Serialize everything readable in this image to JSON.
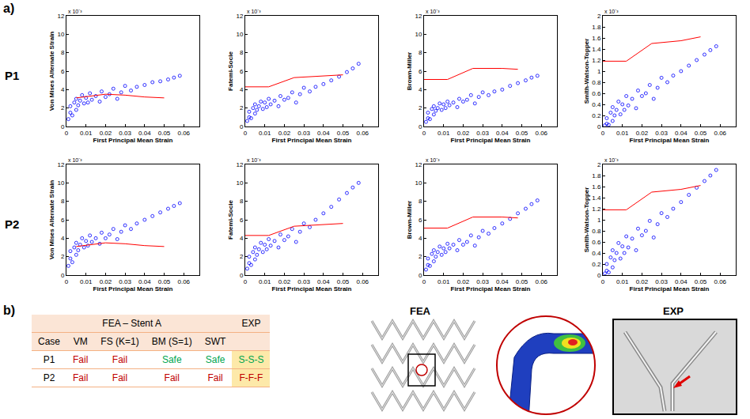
{
  "chart_data": [
    {
      "type": "scatter",
      "y_label": "Von Mises Alternate Strain",
      "x_label": "First Principal Mean Strain",
      "y_multiplier": "x 10⁻³",
      "xlim": [
        0,
        0.068
      ],
      "xticks": [
        0,
        0.01,
        0.02,
        0.03,
        0.04,
        0.05,
        0.06
      ],
      "ylim": [
        0,
        12
      ],
      "yticks": [
        0,
        2,
        4,
        6,
        8,
        10,
        12
      ],
      "grid": false,
      "series": [
        {
          "type": "scatter",
          "marker": "circle-open",
          "color": "#0000ff",
          "x": [
            0.001,
            0.002,
            0.002,
            0.003,
            0.004,
            0.005,
            0.005,
            0.006,
            0.007,
            0.008,
            0.009,
            0.01,
            0.011,
            0.012,
            0.013,
            0.015,
            0.017,
            0.018,
            0.02,
            0.022,
            0.024,
            0.026,
            0.028,
            0.03,
            0.033,
            0.036,
            0.04,
            0.044,
            0.048,
            0.052,
            0.055,
            0.058
          ],
          "values": [
            0.8,
            1.5,
            2.2,
            1.2,
            2.6,
            1.8,
            3.0,
            2.3,
            2.8,
            3.4,
            2.5,
            3.1,
            2.6,
            3.6,
            2.9,
            3.3,
            2.7,
            3.8,
            3.2,
            3.5,
            4.1,
            3.0,
            3.7,
            4.4,
            3.9,
            4.3,
            4.5,
            4.8,
            4.9,
            5.1,
            5.3,
            5.5
          ]
        },
        {
          "type": "line",
          "line_style": "solid",
          "color": "#ff0000",
          "x": [
            0.005,
            0.012,
            0.02,
            0.03,
            0.04,
            0.05
          ],
          "values": [
            3.1,
            3.3,
            3.5,
            3.4,
            3.2,
            3.1
          ]
        }
      ]
    },
    {
      "type": "scatter",
      "y_label": "Fatemi-Socie",
      "x_label": "First Principal Mean Strain",
      "y_multiplier": "x 10⁻³",
      "xlim": [
        0,
        0.068
      ],
      "xticks": [
        0,
        0.01,
        0.02,
        0.03,
        0.04,
        0.05,
        0.06
      ],
      "ylim": [
        0,
        12
      ],
      "yticks": [
        0,
        2,
        4,
        6,
        8,
        10,
        12
      ],
      "grid": false,
      "series": [
        {
          "type": "scatter",
          "marker": "circle-open",
          "color": "#0000ff",
          "x": [
            0.001,
            0.002,
            0.002,
            0.003,
            0.004,
            0.005,
            0.005,
            0.006,
            0.007,
            0.008,
            0.009,
            0.01,
            0.011,
            0.012,
            0.013,
            0.015,
            0.017,
            0.018,
            0.02,
            0.022,
            0.024,
            0.026,
            0.028,
            0.03,
            0.033,
            0.036,
            0.04,
            0.044,
            0.048,
            0.052,
            0.055,
            0.058
          ],
          "values": [
            0.6,
            1.0,
            1.6,
            0.9,
            2.0,
            1.4,
            2.4,
            1.8,
            2.2,
            2.7,
            1.9,
            2.6,
            2.1,
            3.0,
            2.4,
            2.8,
            2.2,
            3.3,
            2.9,
            3.1,
            3.7,
            2.6,
            3.5,
            4.2,
            3.8,
            4.3,
            4.6,
            5.0,
            5.4,
            5.9,
            6.3,
            6.8
          ]
        },
        {
          "type": "line",
          "line_style": "solid",
          "color": "#ff0000",
          "x": [
            0,
            0.012,
            0.025,
            0.04,
            0.05
          ],
          "values": [
            4.3,
            4.3,
            5.3,
            5.5,
            5.6
          ]
        }
      ]
    },
    {
      "type": "scatter",
      "y_label": "Brown-Miller",
      "x_label": "First Principal Mean Strain",
      "y_multiplier": "x 10⁻³",
      "xlim": [
        0,
        0.068
      ],
      "xticks": [
        0,
        0.01,
        0.02,
        0.03,
        0.04,
        0.05,
        0.06
      ],
      "ylim": [
        0,
        12
      ],
      "yticks": [
        0,
        2,
        4,
        6,
        8,
        10,
        12
      ],
      "grid": false,
      "series": [
        {
          "type": "scatter",
          "marker": "circle-open",
          "color": "#0000ff",
          "x": [
            0.001,
            0.002,
            0.002,
            0.003,
            0.004,
            0.005,
            0.005,
            0.006,
            0.007,
            0.008,
            0.009,
            0.01,
            0.011,
            0.012,
            0.013,
            0.015,
            0.017,
            0.018,
            0.02,
            0.022,
            0.024,
            0.026,
            0.028,
            0.03,
            0.033,
            0.036,
            0.04,
            0.044,
            0.048,
            0.052,
            0.055,
            0.058
          ],
          "values": [
            0.5,
            0.9,
            1.5,
            0.8,
            1.9,
            1.3,
            2.2,
            1.7,
            2.0,
            2.5,
            1.8,
            2.4,
            2.0,
            2.7,
            2.3,
            2.6,
            2.1,
            3.0,
            2.7,
            2.9,
            3.4,
            2.5,
            3.2,
            3.7,
            3.4,
            3.8,
            4.0,
            4.4,
            4.7,
            5.0,
            5.3,
            5.5
          ]
        },
        {
          "type": "line",
          "line_style": "solid",
          "color": "#ff0000",
          "x": [
            0,
            0.012,
            0.025,
            0.04,
            0.048
          ],
          "values": [
            5.1,
            5.1,
            6.3,
            6.3,
            6.2
          ]
        }
      ]
    },
    {
      "type": "scatter",
      "y_label": "Smith-Watson-Topper",
      "x_label": "First Principal Mean Strain",
      "y_multiplier": "x 10⁻³",
      "xlim": [
        0,
        0.068
      ],
      "xticks": [
        0,
        0.01,
        0.02,
        0.03,
        0.04,
        0.05,
        0.06
      ],
      "ylim": [
        0,
        2
      ],
      "yticks": [
        0,
        0.2,
        0.4,
        0.6,
        0.8,
        1,
        1.2,
        1.4,
        1.6,
        1.8,
        2
      ],
      "grid": false,
      "series": [
        {
          "type": "scatter",
          "marker": "circle-open",
          "color": "#0000ff",
          "x": [
            0.001,
            0.002,
            0.002,
            0.003,
            0.004,
            0.005,
            0.005,
            0.006,
            0.007,
            0.008,
            0.009,
            0.01,
            0.011,
            0.012,
            0.013,
            0.015,
            0.017,
            0.018,
            0.02,
            0.022,
            0.024,
            0.026,
            0.028,
            0.03,
            0.033,
            0.036,
            0.04,
            0.044,
            0.048,
            0.052,
            0.055,
            0.058
          ],
          "values": [
            0.02,
            0.05,
            0.15,
            0.03,
            0.25,
            0.1,
            0.35,
            0.2,
            0.3,
            0.45,
            0.22,
            0.4,
            0.3,
            0.55,
            0.38,
            0.5,
            0.33,
            0.65,
            0.55,
            0.6,
            0.75,
            0.5,
            0.7,
            0.88,
            0.8,
            0.92,
            1.0,
            1.1,
            1.2,
            1.3,
            1.38,
            1.45
          ]
        },
        {
          "type": "line",
          "line_style": "solid",
          "color": "#ff0000",
          "x": [
            0,
            0.012,
            0.025,
            0.04,
            0.05
          ],
          "values": [
            1.18,
            1.18,
            1.5,
            1.55,
            1.62
          ]
        }
      ]
    },
    {
      "type": "scatter",
      "y_label": "Von Mises Alternate Strain",
      "x_label": "First Principal Mean Strain",
      "y_multiplier": "x 10⁻³",
      "xlim": [
        0,
        0.068
      ],
      "xticks": [
        0,
        0.01,
        0.02,
        0.03,
        0.04,
        0.05,
        0.06
      ],
      "ylim": [
        0,
        12
      ],
      "yticks": [
        0,
        2,
        4,
        6,
        8,
        10,
        12
      ],
      "grid": false,
      "series": [
        {
          "type": "scatter",
          "marker": "circle-open",
          "color": "#0000ff",
          "x": [
            0.001,
            0.002,
            0.002,
            0.003,
            0.004,
            0.005,
            0.005,
            0.006,
            0.007,
            0.008,
            0.009,
            0.01,
            0.011,
            0.012,
            0.013,
            0.015,
            0.017,
            0.018,
            0.02,
            0.022,
            0.024,
            0.026,
            0.028,
            0.03,
            0.033,
            0.036,
            0.04,
            0.044,
            0.048,
            0.052,
            0.055,
            0.058
          ],
          "values": [
            1.0,
            1.8,
            2.6,
            1.4,
            3.0,
            2.2,
            3.5,
            2.7,
            3.3,
            4.0,
            3.0,
            3.7,
            3.2,
            4.3,
            3.6,
            4.0,
            3.4,
            4.6,
            4.0,
            4.4,
            5.0,
            3.9,
            4.7,
            5.4,
            5.0,
            5.6,
            6.0,
            6.4,
            6.8,
            7.2,
            7.5,
            7.8
          ]
        },
        {
          "type": "line",
          "line_style": "solid",
          "color": "#ff0000",
          "x": [
            0.005,
            0.012,
            0.02,
            0.03,
            0.04,
            0.05
          ],
          "values": [
            3.1,
            3.3,
            3.5,
            3.4,
            3.2,
            3.1
          ]
        }
      ]
    },
    {
      "type": "scatter",
      "y_label": "Fatemi-Socie",
      "x_label": "First Principal Mean Strain",
      "y_multiplier": "x 10⁻³",
      "xlim": [
        0,
        0.068
      ],
      "xticks": [
        0,
        0.01,
        0.02,
        0.03,
        0.04,
        0.05,
        0.06
      ],
      "ylim": [
        0,
        12
      ],
      "yticks": [
        0,
        2,
        4,
        6,
        8,
        10,
        12
      ],
      "grid": false,
      "series": [
        {
          "type": "scatter",
          "marker": "circle-open",
          "color": "#0000ff",
          "x": [
            0.001,
            0.002,
            0.002,
            0.003,
            0.004,
            0.005,
            0.005,
            0.006,
            0.007,
            0.008,
            0.009,
            0.01,
            0.011,
            0.012,
            0.013,
            0.015,
            0.017,
            0.018,
            0.02,
            0.022,
            0.024,
            0.026,
            0.028,
            0.03,
            0.033,
            0.036,
            0.04,
            0.044,
            0.048,
            0.052,
            0.055,
            0.058
          ],
          "values": [
            0.7,
            1.3,
            2.0,
            1.1,
            2.5,
            1.7,
            3.0,
            2.2,
            2.8,
            3.5,
            2.5,
            3.3,
            2.8,
            3.9,
            3.2,
            3.7,
            3.0,
            4.4,
            3.8,
            4.2,
            5.0,
            3.6,
            4.7,
            5.6,
            5.2,
            6.0,
            6.7,
            7.4,
            8.2,
            8.9,
            9.5,
            10.0
          ]
        },
        {
          "type": "line",
          "line_style": "solid",
          "color": "#ff0000",
          "x": [
            0,
            0.012,
            0.025,
            0.04,
            0.05
          ],
          "values": [
            4.3,
            4.3,
            5.3,
            5.5,
            5.6
          ]
        }
      ]
    },
    {
      "type": "scatter",
      "y_label": "Brown-Miller",
      "x_label": "First Principal Mean Strain",
      "y_multiplier": "x 10⁻³",
      "xlim": [
        0,
        0.068
      ],
      "xticks": [
        0,
        0.01,
        0.02,
        0.03,
        0.04,
        0.05,
        0.06
      ],
      "ylim": [
        0,
        12
      ],
      "yticks": [
        0,
        2,
        4,
        6,
        8,
        10,
        12
      ],
      "grid": false,
      "series": [
        {
          "type": "scatter",
          "marker": "circle-open",
          "color": "#0000ff",
          "x": [
            0.001,
            0.002,
            0.002,
            0.003,
            0.004,
            0.005,
            0.005,
            0.006,
            0.007,
            0.008,
            0.009,
            0.01,
            0.011,
            0.012,
            0.013,
            0.015,
            0.017,
            0.018,
            0.02,
            0.022,
            0.024,
            0.026,
            0.028,
            0.03,
            0.033,
            0.036,
            0.04,
            0.044,
            0.048,
            0.052,
            0.055,
            0.058
          ],
          "values": [
            0.6,
            1.1,
            1.8,
            1.0,
            2.3,
            1.5,
            2.7,
            2.0,
            2.5,
            3.1,
            2.2,
            2.9,
            2.5,
            3.4,
            2.9,
            3.3,
            2.7,
            3.8,
            3.3,
            3.6,
            4.3,
            3.2,
            4.1,
            4.8,
            4.5,
            5.1,
            5.6,
            6.1,
            6.7,
            7.2,
            7.7,
            8.1
          ]
        },
        {
          "type": "line",
          "line_style": "solid",
          "color": "#ff0000",
          "x": [
            0,
            0.012,
            0.025,
            0.04,
            0.048
          ],
          "values": [
            5.1,
            5.1,
            6.3,
            6.3,
            6.2
          ]
        }
      ]
    },
    {
      "type": "scatter",
      "y_label": "Smith-Watson-Topper",
      "x_label": "First Principal Mean Strain",
      "y_multiplier": "x 10⁻³",
      "xlim": [
        0,
        0.068
      ],
      "xticks": [
        0,
        0.01,
        0.02,
        0.03,
        0.04,
        0.05,
        0.06
      ],
      "ylim": [
        0,
        2
      ],
      "yticks": [
        0,
        0.2,
        0.4,
        0.6,
        0.8,
        1,
        1.2,
        1.4,
        1.6,
        1.8,
        2
      ],
      "grid": false,
      "series": [
        {
          "type": "scatter",
          "marker": "circle-open",
          "color": "#0000ff",
          "x": [
            0.001,
            0.002,
            0.002,
            0.003,
            0.004,
            0.005,
            0.005,
            0.006,
            0.007,
            0.008,
            0.009,
            0.01,
            0.011,
            0.012,
            0.013,
            0.015,
            0.017,
            0.018,
            0.02,
            0.022,
            0.024,
            0.026,
            0.028,
            0.03,
            0.033,
            0.036,
            0.04,
            0.044,
            0.048,
            0.052,
            0.055,
            0.058
          ],
          "values": [
            0.03,
            0.08,
            0.2,
            0.05,
            0.32,
            0.14,
            0.45,
            0.27,
            0.4,
            0.58,
            0.3,
            0.52,
            0.4,
            0.7,
            0.5,
            0.66,
            0.45,
            0.84,
            0.72,
            0.8,
            0.98,
            0.68,
            0.92,
            1.12,
            1.05,
            1.2,
            1.32,
            1.45,
            1.58,
            1.7,
            1.8,
            1.9
          ]
        },
        {
          "type": "line",
          "line_style": "solid",
          "color": "#ff0000",
          "x": [
            0,
            0.012,
            0.025,
            0.04,
            0.05
          ],
          "values": [
            1.18,
            1.18,
            1.5,
            1.55,
            1.62
          ]
        }
      ]
    }
  ],
  "figure": {
    "panel_a_label": "a)",
    "row_labels": [
      "P1",
      "P2"
    ],
    "panel_b_label": "b)",
    "table": {
      "group_header": "FEA – Stent A",
      "exp_header": "EXP",
      "columns": [
        "Case",
        "VM",
        "FS (K=1)",
        "BM (S=1)",
        "SWT"
      ],
      "rows": [
        [
          {
            "text": "P1",
            "color": "#000000"
          },
          {
            "text": "Fail",
            "color": "#c00000"
          },
          {
            "text": "Fail",
            "color": "#c00000"
          },
          {
            "text": "Safe",
            "color": "#00a550"
          },
          {
            "text": "Safe",
            "color": "#00a550"
          },
          {
            "text": "S-S-S",
            "color": "#00a550"
          }
        ],
        [
          {
            "text": "P2",
            "color": "#000000"
          },
          {
            "text": "Fail",
            "color": "#c00000"
          },
          {
            "text": "Fail",
            "color": "#c00000"
          },
          {
            "text": "Fail",
            "color": "#c00000"
          },
          {
            "text": "Fail",
            "color": "#c00000"
          },
          {
            "text": "F-F-F",
            "color": "#c00000"
          }
        ]
      ]
    },
    "fea_label": "FEA",
    "exp_label": "EXP"
  }
}
